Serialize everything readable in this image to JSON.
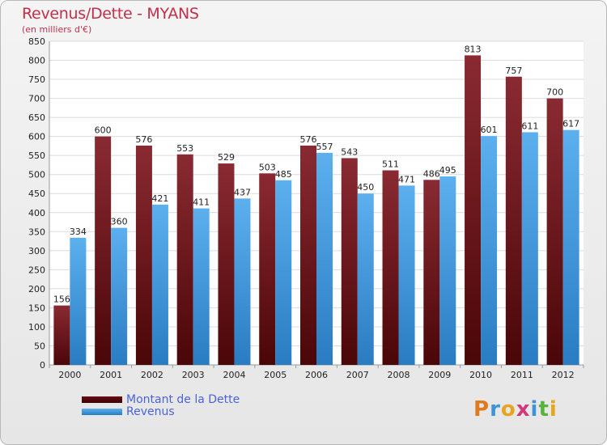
{
  "title": "Revenus/Dette - MYANS",
  "subtitle": "(en milliers d'€)",
  "logo_text": "Proxiti",
  "colors": {
    "dette": "#7a1c24",
    "revenus": "#3d94d8",
    "title": "#c0304a",
    "legend_text": "#4a63d8"
  },
  "chart_data": {
    "type": "bar",
    "categories": [
      "2000",
      "2001",
      "2002",
      "2003",
      "2004",
      "2005",
      "2006",
      "2007",
      "2008",
      "2009",
      "2010",
      "2011",
      "2012"
    ],
    "series": [
      {
        "name": "Montant de la Dette",
        "values": [
          156,
          600,
          576,
          553,
          529,
          503,
          576,
          543,
          511,
          486,
          813,
          757,
          700
        ]
      },
      {
        "name": "Revenus",
        "values": [
          334,
          360,
          421,
          411,
          437,
          485,
          557,
          450,
          471,
          495,
          601,
          611,
          617
        ]
      }
    ],
    "ylim": [
      0,
      850
    ],
    "yticks": [
      0,
      50,
      100,
      150,
      200,
      250,
      300,
      350,
      400,
      450,
      500,
      550,
      600,
      650,
      700,
      750,
      800,
      850
    ],
    "grid": true,
    "legend_position": "bottom-left"
  }
}
